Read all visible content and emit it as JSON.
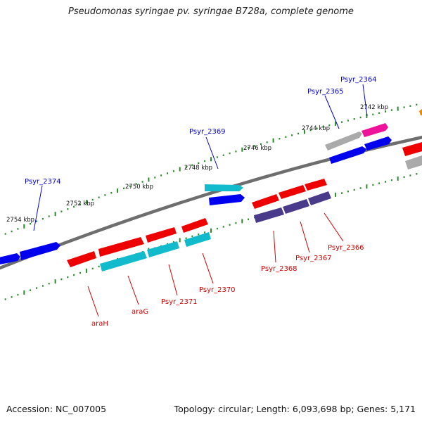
{
  "title": "Pseudomonas syringae pv. syringae B728a, complete genome",
  "footer": {
    "accession": "Accession: NC_007005",
    "stats": "Topology: circular; Length: 6,093,698 bp; Genes: 5,171"
  },
  "colors": {
    "backbone": "#6e6e6e",
    "tick_dot": "#2a8a2a",
    "label_top": "#0000cc",
    "label_bottom": "#cc0000",
    "red": "#ee0000",
    "blue": "#0000ee",
    "cyan": "#11bbcc",
    "purple": "#4a3a8a",
    "gray": "#a8a8a8",
    "magenta": "#ee1199",
    "orange": "#ee8800"
  },
  "scale_labels": [
    "2742 kbp",
    "2744 kbp",
    "2746 kbp",
    "2748 kbp",
    "2750 kbp",
    "2752 kbp",
    "2754 kbp"
  ],
  "top_gene_labels": [
    "Psyr_2364",
    "Psyr_2365",
    "Psyr_2369",
    "Psyr_2374"
  ],
  "bottom_gene_labels": [
    "araH",
    "araG",
    "Psyr_2371",
    "Psyr_2370",
    "Psyr_2368",
    "Psyr_2367",
    "Psyr_2366"
  ]
}
